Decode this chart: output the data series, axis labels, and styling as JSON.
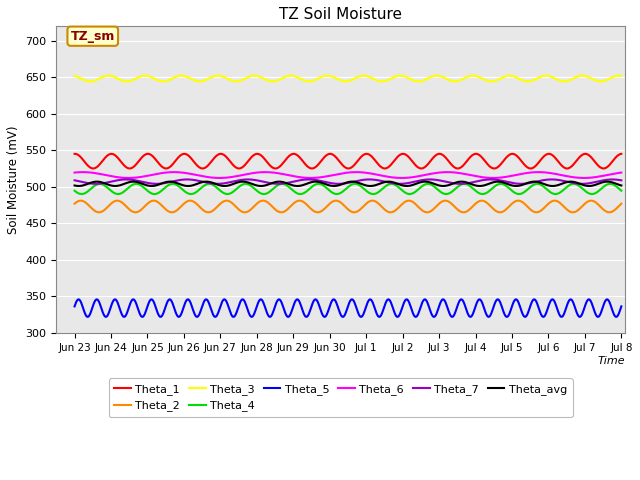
{
  "title": "TZ Soil Moisture",
  "ylabel": "Soil Moisture (mV)",
  "xlabel": "Time",
  "legend_label": "TZ_sm",
  "ylim": [
    300,
    720
  ],
  "yticks": [
    300,
    350,
    400,
    450,
    500,
    550,
    600,
    650,
    700
  ],
  "xtick_labels": [
    "Jun 23",
    "Jun 24",
    "Jun 25",
    "Jun 26",
    "Jun 27",
    "Jun 28",
    "Jun 29",
    "Jun 30",
    "Jul 1",
    "Jul 2",
    "Jul 3",
    "Jul 4",
    "Jul 5",
    "Jul 6",
    "Jul 7",
    "Jul 8"
  ],
  "n_days": 15,
  "series_order": [
    "Theta_1",
    "Theta_2",
    "Theta_3",
    "Theta_4",
    "Theta_5",
    "Theta_6",
    "Theta_7",
    "Theta_avg"
  ],
  "series": {
    "Theta_1": {
      "color": "#ff0000",
      "mean": 535,
      "amp": 10,
      "freq": 1.0,
      "phase": 1.5,
      "lw": 1.5
    },
    "Theta_2": {
      "color": "#ff8800",
      "mean": 473,
      "amp": 8,
      "freq": 1.0,
      "phase": 0.5,
      "lw": 1.5
    },
    "Theta_3": {
      "color": "#ffff00",
      "mean": 648,
      "amp": 4,
      "freq": 1.0,
      "phase": 2.0,
      "lw": 1.5
    },
    "Theta_4": {
      "color": "#00dd00",
      "mean": 497,
      "amp": 7,
      "freq": 1.0,
      "phase": 3.5,
      "lw": 1.5
    },
    "Theta_5": {
      "color": "#0000ff",
      "mean": 334,
      "amp": 12,
      "freq": 2.0,
      "phase": 0.2,
      "lw": 1.5
    },
    "Theta_6": {
      "color": "#ff00ff",
      "mean": 516,
      "amp": 4,
      "freq": 0.4,
      "phase": 1.0,
      "lw": 1.5
    },
    "Theta_7": {
      "color": "#9900cc",
      "mean": 507,
      "amp": 3,
      "freq": 0.6,
      "phase": 2.5,
      "lw": 1.5
    },
    "Theta_avg": {
      "color": "#000000",
      "mean": 504,
      "amp": 3,
      "freq": 1.0,
      "phase": 4.0,
      "lw": 1.5
    }
  },
  "bg_color": "#e8e8e8",
  "legend_box_facecolor": "#ffffcc",
  "legend_box_edgecolor": "#cc8800",
  "fig_facecolor": "#ffffff",
  "grid_color": "#ffffff",
  "legend_row1": [
    "Theta_1",
    "Theta_2",
    "Theta_3",
    "Theta_4",
    "Theta_5",
    "Theta_6"
  ],
  "legend_row2": [
    "Theta_7",
    "Theta_avg"
  ]
}
